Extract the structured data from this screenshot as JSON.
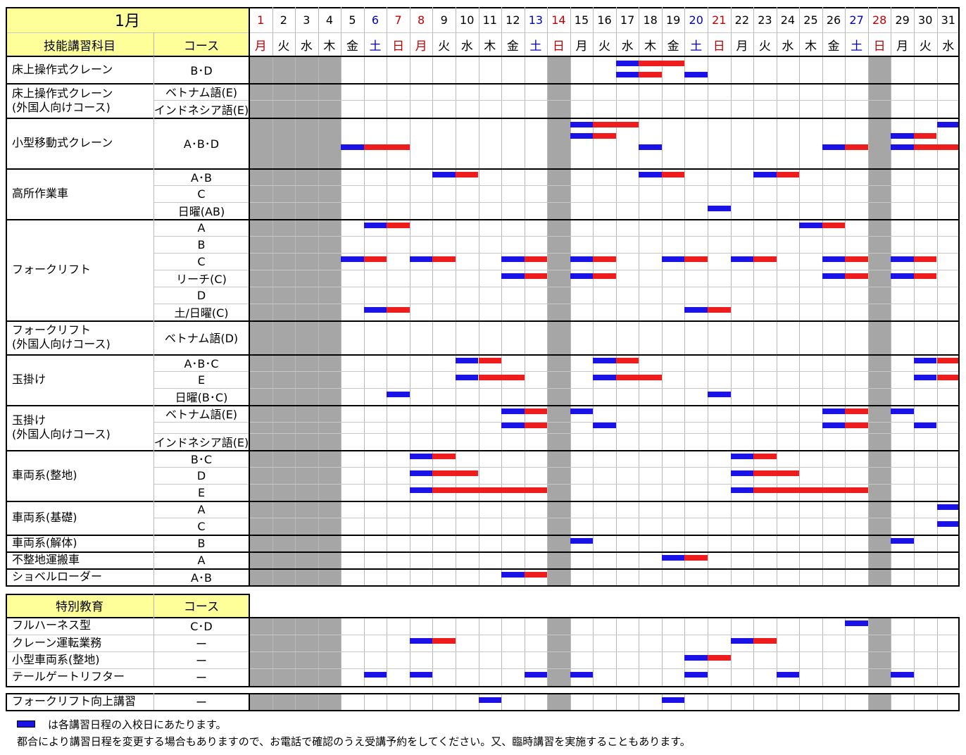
{
  "month_label": "1月",
  "header": {
    "subject": "技能講習科目",
    "course": "コース"
  },
  "days": [
    {
      "d": "1",
      "w": "月",
      "c": "#c00000"
    },
    {
      "d": "2",
      "w": "火",
      "c": "#000000"
    },
    {
      "d": "3",
      "w": "水",
      "c": "#000000"
    },
    {
      "d": "4",
      "w": "木",
      "c": "#000000"
    },
    {
      "d": "5",
      "w": "金",
      "c": "#000000"
    },
    {
      "d": "6",
      "w": "土",
      "c": "#0000c0"
    },
    {
      "d": "7",
      "w": "日",
      "c": "#c00000"
    },
    {
      "d": "8",
      "w": "月",
      "c": "#c00000"
    },
    {
      "d": "9",
      "w": "火",
      "c": "#000000"
    },
    {
      "d": "10",
      "w": "水",
      "c": "#000000"
    },
    {
      "d": "11",
      "w": "木",
      "c": "#000000"
    },
    {
      "d": "12",
      "w": "金",
      "c": "#000000"
    },
    {
      "d": "13",
      "w": "土",
      "c": "#0000c0"
    },
    {
      "d": "14",
      "w": "日",
      "c": "#c00000"
    },
    {
      "d": "15",
      "w": "月",
      "c": "#000000"
    },
    {
      "d": "16",
      "w": "火",
      "c": "#000000"
    },
    {
      "d": "17",
      "w": "水",
      "c": "#000000"
    },
    {
      "d": "18",
      "w": "木",
      "c": "#000000"
    },
    {
      "d": "19",
      "w": "金",
      "c": "#000000"
    },
    {
      "d": "20",
      "w": "土",
      "c": "#0000c0"
    },
    {
      "d": "21",
      "w": "日",
      "c": "#c00000"
    },
    {
      "d": "22",
      "w": "月",
      "c": "#000000"
    },
    {
      "d": "23",
      "w": "火",
      "c": "#000000"
    },
    {
      "d": "24",
      "w": "水",
      "c": "#000000"
    },
    {
      "d": "25",
      "w": "木",
      "c": "#000000"
    },
    {
      "d": "26",
      "w": "金",
      "c": "#000000"
    },
    {
      "d": "27",
      "w": "土",
      "c": "#0000c0"
    },
    {
      "d": "28",
      "w": "日",
      "c": "#c00000"
    },
    {
      "d": "29",
      "w": "月",
      "c": "#000000"
    },
    {
      "d": "30",
      "w": "火",
      "c": "#000000"
    },
    {
      "d": "31",
      "w": "水",
      "c": "#000000"
    }
  ],
  "closed_days": [
    1,
    2,
    3,
    4,
    14,
    28
  ],
  "colors": {
    "start_day": "#1a12e6",
    "course_day": "#ee1c1c",
    "closed": "#a6a6a6",
    "header_bg": "#ffff99"
  },
  "section1": {
    "groups": [
      {
        "subject": [
          "床上操作式クレーン"
        ],
        "rows": [
          {
            "course": "B･D",
            "bars": [
              [
                17,
                17,
                18,
                19
              ],
              [
                17,
                17,
                18,
                18
              ],
              [
                20,
                20,
                20,
                20
              ]
            ]
          }
        ]
      },
      {
        "subject": [
          "床上操作式クレーン",
          "(外国人向けコース)"
        ],
        "rows": [
          {
            "course": "ベトナム語(E)",
            "bars": []
          },
          {
            "course": "インドネシア語(E)",
            "bars": []
          }
        ]
      },
      {
        "subject": [
          "小型移動式クレーン"
        ],
        "rows": [
          {
            "course": "A･B･D",
            "bars": [
              [
                15,
                15,
                16,
                17
              ],
              [
                15,
                15,
                16,
                16
              ],
              [
                18,
                18,
                18,
                18
              ],
              [
                29,
                29,
                30,
                31
              ],
              [
                29,
                29,
                30,
                30
              ],
              [
                5,
                5,
                6,
                7
              ],
              [
                26,
                26,
                27,
                27
              ],
              [
                29,
                29,
                29,
                29
              ],
              [
                31,
                31,
                31,
                31
              ]
            ]
          }
        ]
      },
      {
        "subject": [
          "高所作業車"
        ],
        "rows": [
          {
            "course": "A･B",
            "bars": [
              [
                9,
                9,
                10,
                10
              ],
              [
                18,
                18,
                19,
                19
              ],
              [
                23,
                23,
                24,
                24
              ]
            ]
          },
          {
            "course": "C",
            "bars": []
          },
          {
            "course": "日曜(AB)",
            "bars": [
              [
                21,
                21,
                21,
                21
              ]
            ]
          }
        ]
      },
      {
        "subject": [
          "フォークリフト"
        ],
        "rows": [
          {
            "course": "A",
            "bars": [
              [
                6,
                6,
                7,
                7
              ],
              [
                25,
                25,
                26,
                26
              ]
            ]
          },
          {
            "course": "B",
            "bars": []
          },
          {
            "course": "C",
            "bars": [
              [
                5,
                5,
                6,
                6
              ],
              [
                8,
                8,
                9,
                9
              ],
              [
                12,
                12,
                13,
                13
              ],
              [
                15,
                15,
                16,
                16
              ],
              [
                19,
                19,
                20,
                20
              ],
              [
                22,
                22,
                23,
                23
              ],
              [
                26,
                26,
                27,
                27
              ],
              [
                29,
                29,
                30,
                30
              ]
            ]
          },
          {
            "course": "リーチ(C)",
            "bars": [
              [
                12,
                12,
                13,
                13
              ],
              [
                15,
                15,
                16,
                16
              ],
              [
                26,
                26,
                27,
                27
              ],
              [
                29,
                29,
                30,
                30
              ]
            ]
          },
          {
            "course": "D",
            "bars": []
          },
          {
            "course": "土/日曜(C)",
            "bars": [
              [
                6,
                6,
                7,
                7
              ],
              [
                20,
                20,
                21,
                21
              ]
            ]
          }
        ]
      },
      {
        "subject": [
          "フォークリフト",
          "(外国人向けコース)"
        ],
        "rows": [
          {
            "course": "ベトナム語(D)",
            "bars": []
          }
        ]
      },
      {
        "subject": [
          "玉掛け"
        ],
        "rows": [
          {
            "course": "A･B･C",
            "bars": [
              [
                10,
                10,
                11,
                11
              ],
              [
                16,
                16,
                17,
                17
              ],
              [
                30,
                30,
                31,
                31
              ]
            ]
          },
          {
            "course": "E",
            "bars": [
              [
                10,
                10,
                11,
                12
              ],
              [
                16,
                16,
                17,
                18
              ],
              [
                30,
                30,
                31,
                31
              ]
            ]
          },
          {
            "course": "日曜(B･C)",
            "bars": [
              [
                7,
                7,
                7,
                7
              ],
              [
                21,
                21,
                21,
                21
              ]
            ]
          }
        ]
      },
      {
        "subject": [
          "玉掛け",
          "(外国人向けコース)"
        ],
        "rows": [
          {
            "course": "ベトナム語(E)",
            "bars": [
              [
                12,
                12,
                13,
                13
              ],
              [
                15,
                15,
                15,
                15
              ],
              [
                26,
                26,
                27,
                27
              ],
              [
                29,
                29,
                29,
                29
              ]
            ]
          },
          {
            "course": "",
            "bars": [
              [
                12,
                12,
                13,
                13
              ],
              [
                16,
                16,
                16,
                16
              ],
              [
                26,
                26,
                27,
                27
              ],
              [
                30,
                30,
                30,
                30
              ]
            ]
          },
          {
            "course": "インドネシア語(E)",
            "bars": []
          }
        ]
      },
      {
        "subject": [
          "車両系(整地)"
        ],
        "rows": [
          {
            "course": "B･C",
            "bars": [
              [
                8,
                8,
                9,
                9
              ],
              [
                22,
                22,
                23,
                23
              ]
            ]
          },
          {
            "course": "D",
            "bars": [
              [
                8,
                8,
                9,
                10
              ],
              [
                22,
                22,
                23,
                24
              ]
            ]
          },
          {
            "course": "E",
            "bars": [
              [
                8,
                8,
                9,
                13
              ],
              [
                22,
                22,
                23,
                27
              ]
            ]
          }
        ]
      },
      {
        "subject": [
          "車両系(基礎)"
        ],
        "rows": [
          {
            "course": "A",
            "bars": [
              [
                31,
                31,
                31,
                31
              ]
            ]
          },
          {
            "course": "C",
            "bars": [
              [
                31,
                31,
                31,
                31
              ]
            ]
          }
        ]
      },
      {
        "subject": [
          "車両系(解体)"
        ],
        "rows": [
          {
            "course": "B",
            "bars": [
              [
                15,
                15,
                15,
                15
              ],
              [
                29,
                29,
                29,
                29
              ]
            ]
          }
        ]
      },
      {
        "subject": [
          "不整地運搬車"
        ],
        "rows": [
          {
            "course": "A",
            "bars": [
              [
                19,
                19,
                20,
                20
              ]
            ]
          }
        ]
      },
      {
        "subject": [
          "ショベルローダー"
        ],
        "rows": [
          {
            "course": "A･B",
            "bars": [
              [
                12,
                12,
                13,
                13
              ]
            ]
          }
        ]
      }
    ]
  },
  "section2": {
    "header": {
      "subject": "特別教育",
      "course": "コース"
    },
    "rows": [
      {
        "subject": "フルハーネス型",
        "course": "C･D",
        "bars": [
          [
            27,
            27,
            27,
            27
          ]
        ]
      },
      {
        "subject": "クレーン運転業務",
        "course": "ー",
        "bars": [
          [
            8,
            8,
            9,
            9
          ],
          [
            22,
            22,
            23,
            23
          ]
        ]
      },
      {
        "subject": "小型車両系(整地)",
        "course": "ー",
        "bars": [
          [
            20,
            20,
            21,
            21
          ]
        ]
      },
      {
        "subject": "テールゲートリフター",
        "course": "ー",
        "bars": [
          [
            6,
            6,
            6,
            6
          ],
          [
            8,
            8,
            8,
            8
          ],
          [
            13,
            13,
            13,
            13
          ],
          [
            15,
            15,
            15,
            15
          ],
          [
            20,
            20,
            20,
            20
          ],
          [
            24,
            24,
            24,
            24
          ],
          [
            29,
            29,
            29,
            29
          ]
        ]
      }
    ]
  },
  "section3": {
    "rows": [
      {
        "subject": "フォークリフト向上講習",
        "course": "ー",
        "bars": [
          [
            11,
            11,
            11,
            11
          ],
          [
            19,
            19,
            19,
            19
          ]
        ]
      }
    ]
  },
  "legend": {
    "text": "は各講習日程の入校日にあたります。",
    "note": "都合により講習日程を変更する場合もありますので、お電話で確認のうえ受講予約をしてください。又、臨時講習を実施することもあります。"
  }
}
